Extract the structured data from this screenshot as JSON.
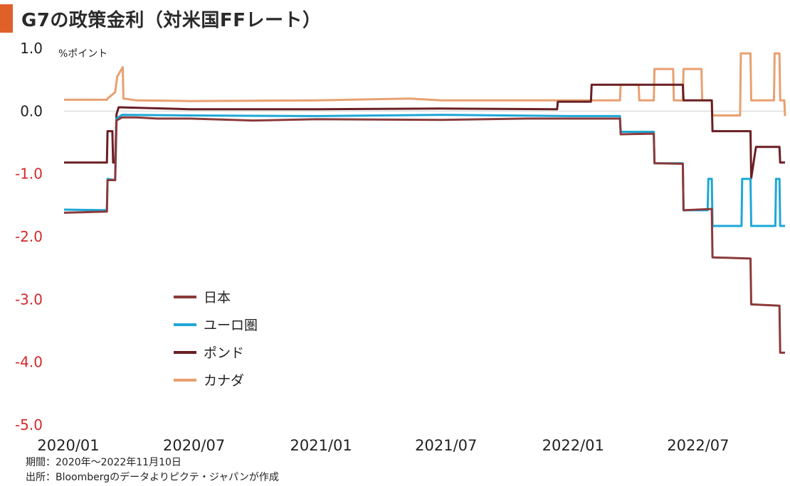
{
  "title": "G7の政策金利（対米国FFレート）",
  "notes": {
    "period": "期間：2020年～2022年11月10日",
    "source": "出所：Bloombergのデータよりピクテ・ジャパンが作成"
  },
  "colors": {
    "accent": "#e0602a",
    "japan": "#8b3a3a",
    "euro": "#1ea7d6",
    "pound": "#6a1f24",
    "canada": "#e8a070",
    "grid": "#dddddd",
    "negative_tick": "#d42a2a"
  },
  "chart_data": {
    "type": "line",
    "title": "G7の政策金利（対米国FFレート）",
    "ylabel": "%ポイント",
    "xlabel": "",
    "ylim": [
      -5.0,
      1.0
    ],
    "yticks": [
      "1.0",
      "0.0",
      "-1.0",
      "-2.0",
      "-3.0",
      "-4.0",
      "-5.0"
    ],
    "ytick_values": [
      1.0,
      0.0,
      -1.0,
      -2.0,
      -3.0,
      -4.0,
      -5.0
    ],
    "xlim": [
      "2020-01-01",
      "2022-11-10"
    ],
    "xticks": [
      "2020/01",
      "2020/07",
      "2021/01",
      "2021/07",
      "2022/01",
      "2022/07"
    ],
    "xtick_dates": [
      "2020-01-01",
      "2020-07-01",
      "2021-01-01",
      "2021-07-01",
      "2022-01-01",
      "2022-07-01"
    ],
    "grid": "zero line only",
    "legend_position": "lower-left",
    "series": [
      {
        "name": "日本",
        "points": [
          [
            "2020-01-01",
            -1.62
          ],
          [
            "2020-03-03",
            -1.6
          ],
          [
            "2020-03-04",
            -1.1
          ],
          [
            "2020-03-15",
            -1.1
          ],
          [
            "2020-03-17",
            -0.15
          ],
          [
            "2020-03-25",
            -0.1
          ],
          [
            "2020-04-15",
            -0.1
          ],
          [
            "2020-05-15",
            -0.12
          ],
          [
            "2020-07-01",
            -0.12
          ],
          [
            "2020-10-01",
            -0.15
          ],
          [
            "2021-01-01",
            -0.13
          ],
          [
            "2021-07-01",
            -0.14
          ],
          [
            "2021-11-01",
            -0.12
          ],
          [
            "2022-01-01",
            -0.12
          ],
          [
            "2022-03-16",
            -0.12
          ],
          [
            "2022-03-17",
            -0.37
          ],
          [
            "2022-05-04",
            -0.36
          ],
          [
            "2022-05-05",
            -0.83
          ],
          [
            "2022-06-15",
            -0.84
          ],
          [
            "2022-06-16",
            -1.58
          ],
          [
            "2022-07-27",
            -1.56
          ],
          [
            "2022-07-28",
            -2.33
          ],
          [
            "2022-09-21",
            -2.35
          ],
          [
            "2022-09-22",
            -3.08
          ],
          [
            "2022-11-02",
            -3.1
          ],
          [
            "2022-11-03",
            -3.85
          ],
          [
            "2022-11-10",
            -3.85
          ]
        ]
      },
      {
        "name": "ユーロ圏",
        "points": [
          [
            "2020-01-01",
            -1.57
          ],
          [
            "2020-03-03",
            -1.58
          ],
          [
            "2020-03-04",
            -1.08
          ],
          [
            "2020-03-15",
            -1.1
          ],
          [
            "2020-03-17",
            -0.12
          ],
          [
            "2020-03-25",
            -0.06
          ],
          [
            "2020-07-01",
            -0.07
          ],
          [
            "2021-01-01",
            -0.08
          ],
          [
            "2021-07-01",
            -0.06
          ],
          [
            "2022-01-01",
            -0.08
          ],
          [
            "2022-03-16",
            -0.08
          ],
          [
            "2022-03-17",
            -0.33
          ],
          [
            "2022-05-04",
            -0.33
          ],
          [
            "2022-05-05",
            -0.83
          ],
          [
            "2022-06-15",
            -0.83
          ],
          [
            "2022-06-16",
            -1.58
          ],
          [
            "2022-07-21",
            -1.58
          ],
          [
            "2022-07-22",
            -1.08
          ],
          [
            "2022-07-27",
            -1.08
          ],
          [
            "2022-07-28",
            -1.83
          ],
          [
            "2022-09-08",
            -1.83
          ],
          [
            "2022-09-09",
            -1.08
          ],
          [
            "2022-09-21",
            -1.08
          ],
          [
            "2022-09-22",
            -1.83
          ],
          [
            "2022-10-27",
            -1.83
          ],
          [
            "2022-10-28",
            -1.08
          ],
          [
            "2022-11-02",
            -1.08
          ],
          [
            "2022-11-03",
            -1.83
          ],
          [
            "2022-11-10",
            -1.83
          ]
        ]
      },
      {
        "name": "ポンド",
        "points": [
          [
            "2020-01-01",
            -0.82
          ],
          [
            "2020-03-03",
            -0.82
          ],
          [
            "2020-03-04",
            -0.32
          ],
          [
            "2020-03-11",
            -0.32
          ],
          [
            "2020-03-12",
            -0.82
          ],
          [
            "2020-03-15",
            -0.82
          ],
          [
            "2020-03-17",
            -0.05
          ],
          [
            "2020-03-20",
            0.06
          ],
          [
            "2020-07-01",
            0.03
          ],
          [
            "2021-01-01",
            0.03
          ],
          [
            "2021-07-01",
            0.04
          ],
          [
            "2021-12-15",
            0.03
          ],
          [
            "2021-12-16",
            0.15
          ],
          [
            "2022-02-02",
            0.15
          ],
          [
            "2022-02-03",
            0.42
          ],
          [
            "2022-03-16",
            0.42
          ],
          [
            "2022-03-17",
            0.42
          ],
          [
            "2022-05-04",
            0.42
          ],
          [
            "2022-05-05",
            0.42
          ],
          [
            "2022-06-15",
            0.42
          ],
          [
            "2022-06-16",
            0.17
          ],
          [
            "2022-07-27",
            0.17
          ],
          [
            "2022-07-28",
            -0.32
          ],
          [
            "2022-09-21",
            -0.32
          ],
          [
            "2022-09-22",
            -1.07
          ],
          [
            "2022-09-29",
            -0.57
          ],
          [
            "2022-11-02",
            -0.57
          ],
          [
            "2022-11-03",
            -0.82
          ],
          [
            "2022-11-10",
            -0.82
          ]
        ]
      },
      {
        "name": "カナダ",
        "points": [
          [
            "2020-01-01",
            0.18
          ],
          [
            "2020-03-03",
            0.18
          ],
          [
            "2020-03-04",
            0.2
          ],
          [
            "2020-03-15",
            0.3
          ],
          [
            "2020-03-18",
            0.55
          ],
          [
            "2020-03-26",
            0.7
          ],
          [
            "2020-03-27",
            0.2
          ],
          [
            "2020-04-15",
            0.17
          ],
          [
            "2020-07-01",
            0.16
          ],
          [
            "2021-01-01",
            0.17
          ],
          [
            "2021-05-15",
            0.2
          ],
          [
            "2021-07-01",
            0.17
          ],
          [
            "2022-01-01",
            0.17
          ],
          [
            "2022-03-16",
            0.17
          ],
          [
            "2022-03-17",
            0.42
          ],
          [
            "2022-04-12",
            0.42
          ],
          [
            "2022-04-13",
            0.17
          ],
          [
            "2022-05-04",
            0.17
          ],
          [
            "2022-05-05",
            0.67
          ],
          [
            "2022-06-01",
            0.67
          ],
          [
            "2022-06-02",
            0.17
          ],
          [
            "2022-06-15",
            0.17
          ],
          [
            "2022-06-16",
            0.67
          ],
          [
            "2022-07-12",
            0.67
          ],
          [
            "2022-07-13",
            0.17
          ],
          [
            "2022-07-27",
            0.17
          ],
          [
            "2022-07-28",
            -0.07
          ],
          [
            "2022-09-06",
            -0.07
          ],
          [
            "2022-09-07",
            0.92
          ],
          [
            "2022-09-21",
            0.92
          ],
          [
            "2022-09-22",
            0.17
          ],
          [
            "2022-10-25",
            0.17
          ],
          [
            "2022-10-26",
            0.92
          ],
          [
            "2022-11-02",
            0.92
          ],
          [
            "2022-11-03",
            0.17
          ],
          [
            "2022-11-09",
            0.17
          ],
          [
            "2022-11-10",
            -0.08
          ]
        ]
      }
    ]
  }
}
